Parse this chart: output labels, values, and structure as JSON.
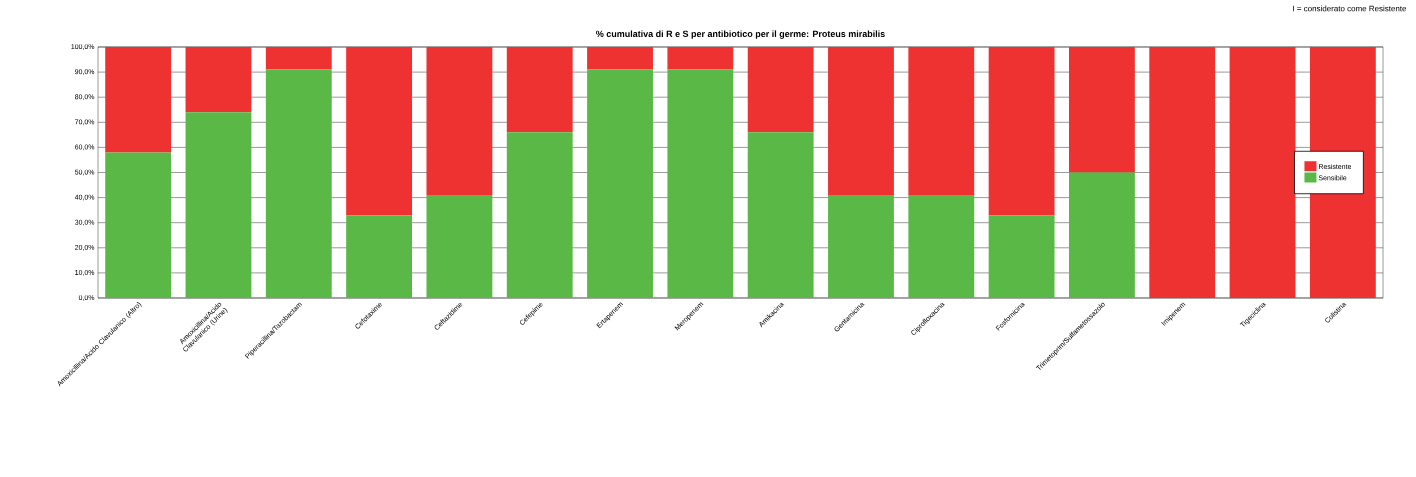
{
  "chart_data": {
    "type": "bar",
    "title": "% cumulativa di R e S per antibiotico per il germe: Proteus mirabilis",
    "annotations": [
      "I = considerato come Resistente"
    ],
    "categories": [
      "Amoxicillina/Acido Clavulanico (Altro)",
      "Amoxicillina/Acido Clavulanico (Urine)",
      "Piperacillina/Tazobactam",
      "Cefotaxime",
      "Ceftazidime",
      "Cefepime",
      "Ertapenem",
      "Meropenem",
      "Amikacina",
      "Gentamicina",
      "Ciprofloxacina",
      "Fosfomicina",
      "Trimetoprim/Sulfametossazolo",
      "Imipenem",
      "Tigeciclina",
      "Colistina"
    ],
    "stacked": true,
    "series": [
      {
        "name": "Sensibile",
        "color": "#5ab946",
        "values": [
          58,
          74,
          91,
          33,
          41,
          66,
          91,
          91,
          66,
          41,
          41,
          33,
          50,
          0,
          0,
          0
        ]
      },
      {
        "name": "Resistente",
        "color": "#ee3131",
        "values": [
          42,
          26,
          9,
          67,
          59,
          34,
          9,
          9,
          34,
          59,
          59,
          67,
          50,
          100,
          100,
          100
        ]
      }
    ],
    "ylim": [
      0,
      100
    ],
    "yticks": [
      {
        "value": 0,
        "label": "0,0%"
      },
      {
        "value": 10,
        "label": "10,0%"
      },
      {
        "value": 20,
        "label": "20,0%"
      },
      {
        "value": 30,
        "label": "30,0%"
      },
      {
        "value": 40,
        "label": "40,0%"
      },
      {
        "value": 50,
        "label": "50,0%"
      },
      {
        "value": 60,
        "label": "60,0%"
      },
      {
        "value": 70,
        "label": "70,0%"
      },
      {
        "value": 80,
        "label": "80,0%"
      },
      {
        "value": 90,
        "label": "90,0%"
      },
      {
        "value": 100,
        "label": "100,0%"
      }
    ],
    "grid": "y",
    "legend": "right"
  }
}
